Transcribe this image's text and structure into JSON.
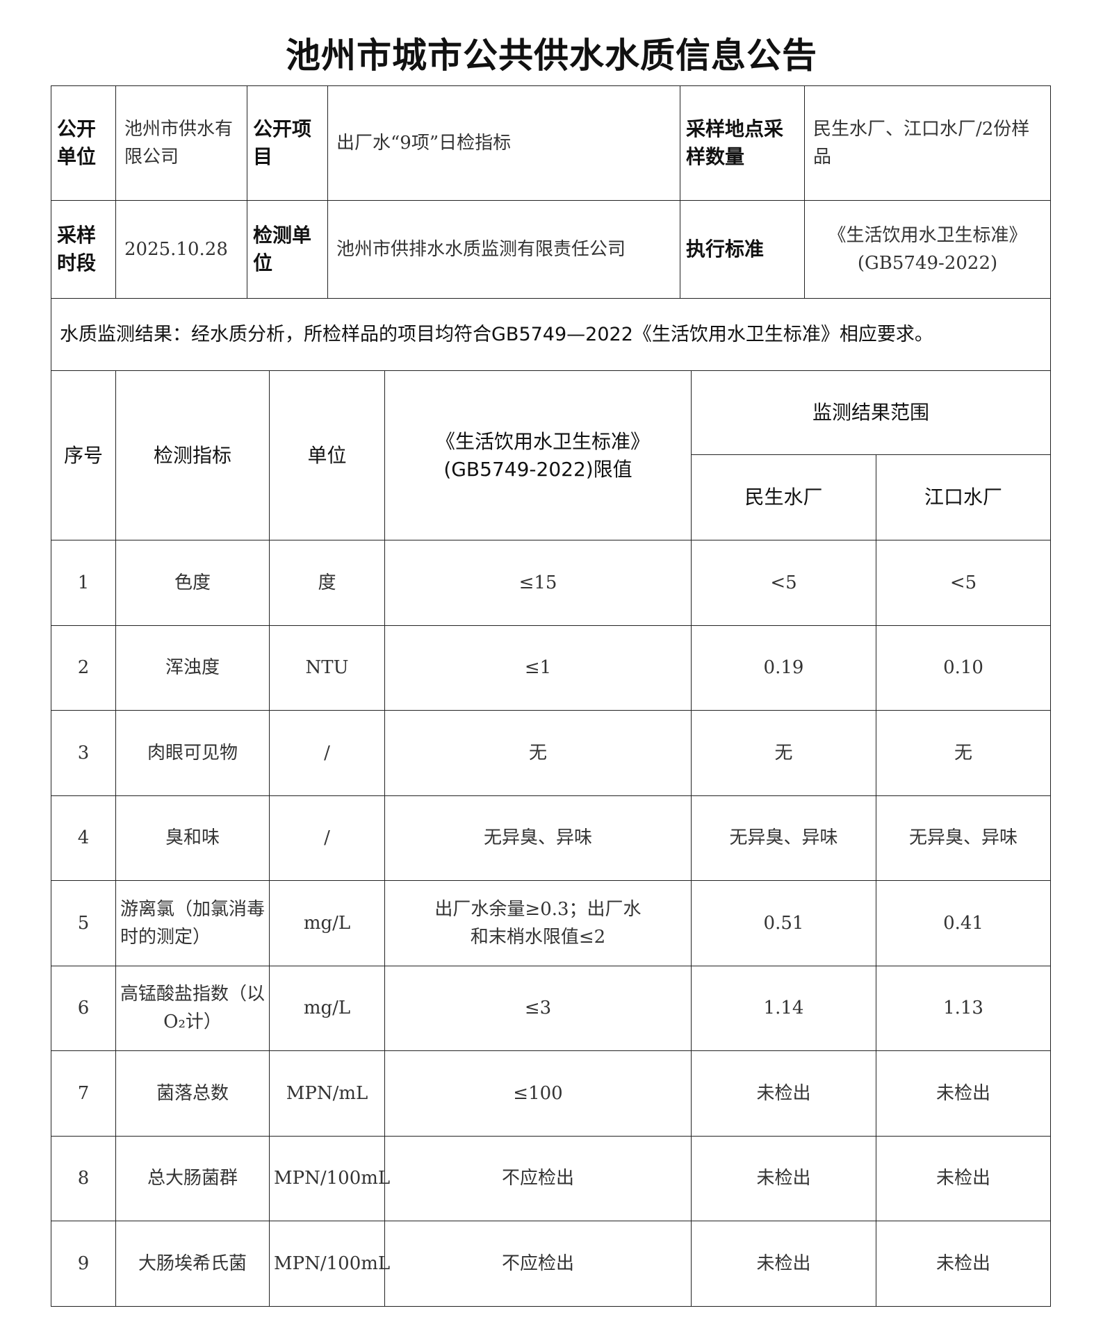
{
  "title": "池州市城市公共供水水质信息公告",
  "info": {
    "publisher_label": "公开单位",
    "publisher": "池州市供水有限公司",
    "item_label": "公开项目",
    "item": "出厂水“9项”日检指标",
    "site_label": "采样地点采样数量",
    "site": "民生水厂、江口水厂/2份样品",
    "period_label": "采样时段",
    "period": "2025.10.28",
    "lab_label": "检测单位",
    "lab": "池州市供排水水质监测有限责任公司",
    "standard_label": "执行标准",
    "standard": "《生活饮用水卫生标准》(GB5749-2022)"
  },
  "conclusion": "水质监测结果：经水质分析，所检样品的项目均符合GB5749—2022《生活饮用水卫生标准》相应要求。",
  "table": {
    "headers": {
      "no": "序号",
      "indicator": "检测指标",
      "unit": "单位",
      "limit": "《生活饮用水卫生标准》(GB5749-2022)限值",
      "range": "监测结果范围",
      "plant1": "民生水厂",
      "plant2": "江口水厂"
    },
    "rows": [
      {
        "no": "1",
        "indicator": "色度",
        "unit": "度",
        "limit": "≤15",
        "plant1": "<5",
        "plant2": "<5"
      },
      {
        "no": "2",
        "indicator": "浑浊度",
        "unit": "NTU",
        "limit": "≤1",
        "plant1": "0.19",
        "plant2": "0.10"
      },
      {
        "no": "3",
        "indicator": "肉眼可见物",
        "unit": "/",
        "limit": "无",
        "plant1": "无",
        "plant2": "无"
      },
      {
        "no": "4",
        "indicator": "臭和味",
        "unit": "/",
        "limit": "无异臭、异味",
        "plant1": "无异臭、异味",
        "plant2": "无异臭、异味"
      },
      {
        "no": "5",
        "indicator": "游离氯（加氯消毒时的测定）",
        "unit": "mg/L",
        "limit": "出厂水余量≥0.3；出厂水和末梢水限值≤2",
        "plant1": "0.51",
        "plant2": "0.41"
      },
      {
        "no": "6",
        "indicator": "高锰酸盐指数（以O₂计）",
        "unit": "mg/L",
        "limit": "≤3",
        "plant1": "1.14",
        "plant2": "1.13"
      },
      {
        "no": "7",
        "indicator": "菌落总数",
        "unit": "MPN/mL",
        "limit": "≤100",
        "plant1": "未检出",
        "plant2": "未检出"
      },
      {
        "no": "8",
        "indicator": "总大肠菌群",
        "unit": "MPN/100mL",
        "limit": "不应检出",
        "plant1": "未检出",
        "plant2": "未检出"
      },
      {
        "no": "9",
        "indicator": "大肠埃希氏菌",
        "unit": "MPN/100mL",
        "limit": "不应检出",
        "plant1": "未检出",
        "plant2": "未检出"
      }
    ]
  }
}
